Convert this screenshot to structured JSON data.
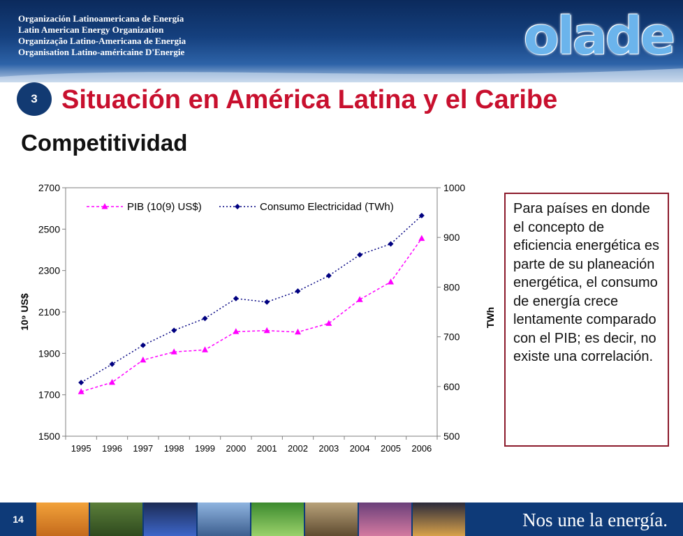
{
  "header": {
    "org_names": [
      "Organización Latinoamericana de Energía",
      "Latin American Energy Organization",
      "Organização Latino-Americana de Energia",
      "Organisation Latino-américaine D'Energie"
    ],
    "logo_text": "olade"
  },
  "slide": {
    "section_number": "3",
    "title": "Situación en América Latina y el Caribe",
    "subtitle": "Competitividad"
  },
  "note": {
    "text": "Para países en donde el concepto de eficiencia energética es parte de su planeación energética, el consumo de energía crece lentamente comparado con el PIB; es decir, no existe una correlación."
  },
  "footer": {
    "page_number": "14",
    "tagline": "Nos une la energía.",
    "photos": [
      "wind-turbine-photo",
      "refinery-photo",
      "gas-flame-photo",
      "solar-panel-photo",
      "leaf-photo",
      "mining-photo",
      "power-lines-photo",
      "industrial-night-photo"
    ]
  },
  "colors": {
    "title_red": "#c8102e",
    "navy": "#0e3a78",
    "pib_series": "#ff00ff",
    "electricity_series": "#000080",
    "note_border": "#8b1a2b"
  },
  "chart_data": {
    "type": "line",
    "categories": [
      "1995",
      "1996",
      "1997",
      "1998",
      "1999",
      "2000",
      "2001",
      "2002",
      "2003",
      "2004",
      "2005",
      "2006"
    ],
    "y_left": {
      "label": "10⁹ US$",
      "ylim": [
        1500,
        2700
      ],
      "ticks": [
        "1500",
        "1700",
        "1900",
        "2100",
        "2300",
        "2500",
        "2700"
      ]
    },
    "y_right": {
      "label": "TWh",
      "ylim": [
        500,
        1000
      ],
      "ticks": [
        "500",
        "600",
        "700",
        "800",
        "900",
        "1000"
      ]
    },
    "series": [
      {
        "name": "PIB (10(9) US$)",
        "axis": "left",
        "color": "#ff00ff",
        "marker": "triangle",
        "values": [
          1715,
          1760,
          1868,
          1907,
          1917,
          2005,
          2010,
          2003,
          2045,
          2160,
          2245,
          2455
        ]
      },
      {
        "name": "Consumo Electricidad (TWh)",
        "axis": "right",
        "color": "#000080",
        "marker": "diamond",
        "values": [
          608,
          645,
          683,
          713,
          737,
          777,
          770,
          792,
          823,
          865,
          887,
          944
        ]
      }
    ],
    "legend_placement": "top",
    "grid": false
  }
}
